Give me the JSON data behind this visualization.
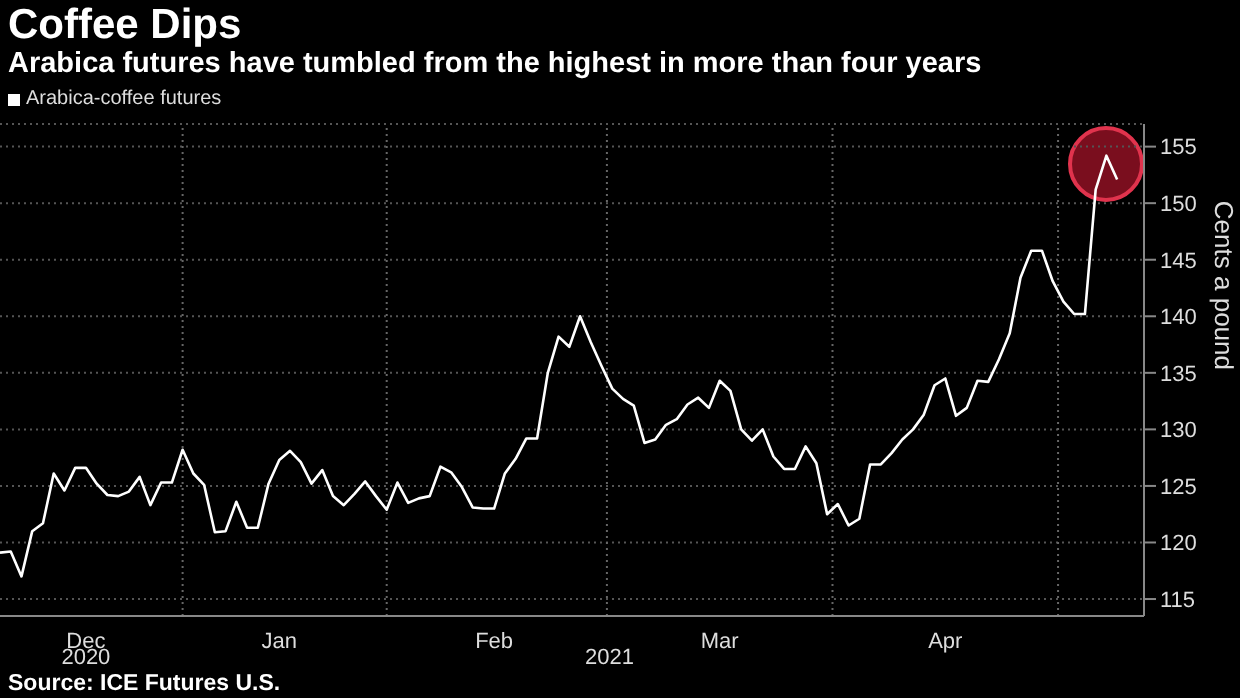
{
  "chart_data": {
    "type": "line",
    "title": "Coffee Dips",
    "subtitle": "Arabica futures have tumbled from the highest in more than four years",
    "ylabel": "Cents a pound",
    "categories": [
      null,
      null,
      null,
      null,
      null,
      null,
      null,
      null,
      "Dec",
      null,
      null,
      null,
      null,
      null,
      null,
      null,
      null,
      null,
      null,
      null,
      null,
      null,
      null,
      null,
      null,
      null,
      "Jan",
      null,
      null,
      null,
      null,
      null,
      null,
      null,
      null,
      null,
      null,
      null,
      null,
      null,
      null,
      null,
      null,
      null,
      null,
      null,
      "Feb",
      null,
      null,
      null,
      null,
      null,
      null,
      null,
      null,
      null,
      null,
      null,
      null,
      null,
      null,
      null,
      null,
      null,
      null,
      null,
      null,
      "Mar",
      null,
      null,
      null,
      null,
      null,
      null,
      null,
      null,
      null,
      null,
      null,
      null,
      null,
      null,
      null,
      null,
      null,
      null,
      null,
      null,
      "Apr",
      null,
      null,
      null,
      null,
      null,
      null,
      null,
      null,
      null,
      null,
      null,
      null,
      null,
      null,
      null,
      null
    ],
    "series": [
      {
        "name": "Arabica-coffee futures",
        "color": "#ffffff",
        "values": [
          119.1,
          119.2,
          117.0,
          121.0,
          121.7,
          126.1,
          124.6,
          126.6,
          126.6,
          125.2,
          124.2,
          124.1,
          124.5,
          125.8,
          123.3,
          125.3,
          125.3,
          128.2,
          126.1,
          125.1,
          120.9,
          121.0,
          123.6,
          121.3,
          121.3,
          125.2,
          127.3,
          128.1,
          127.1,
          125.2,
          126.4,
          124.1,
          123.3,
          124.3,
          125.4,
          124.1,
          122.9,
          125.3,
          123.5,
          123.9,
          124.1,
          126.7,
          126.2,
          124.9,
          123.1,
          123.0,
          123.0,
          126.1,
          127.4,
          129.2,
          129.2,
          135.0,
          138.2,
          137.3,
          140.0,
          137.7,
          135.6,
          133.6,
          132.7,
          132.1,
          128.8,
          129.1,
          130.4,
          130.9,
          132.2,
          132.8,
          131.9,
          134.3,
          133.4,
          130.0,
          129.0,
          130.0,
          127.6,
          126.5,
          126.5,
          128.5,
          127.0,
          122.5,
          123.4,
          121.5,
          122.1,
          126.9,
          126.9,
          127.9,
          129.1,
          130.0,
          131.3,
          133.9,
          134.5,
          131.2,
          131.9,
          134.3,
          134.2,
          136.2,
          138.5,
          143.4,
          145.8,
          145.8,
          143.1,
          141.3,
          140.2,
          140.2,
          151.2,
          154.2,
          152.1
        ]
      }
    ],
    "ylim": [
      113.5,
      157
    ],
    "yticks": [
      115,
      120,
      125,
      130,
      135,
      140,
      145,
      150,
      155
    ],
    "grid": true,
    "legend": "top left",
    "annotations": [
      "2020",
      "2021",
      "Source: ICE Futures U.S."
    ]
  }
}
